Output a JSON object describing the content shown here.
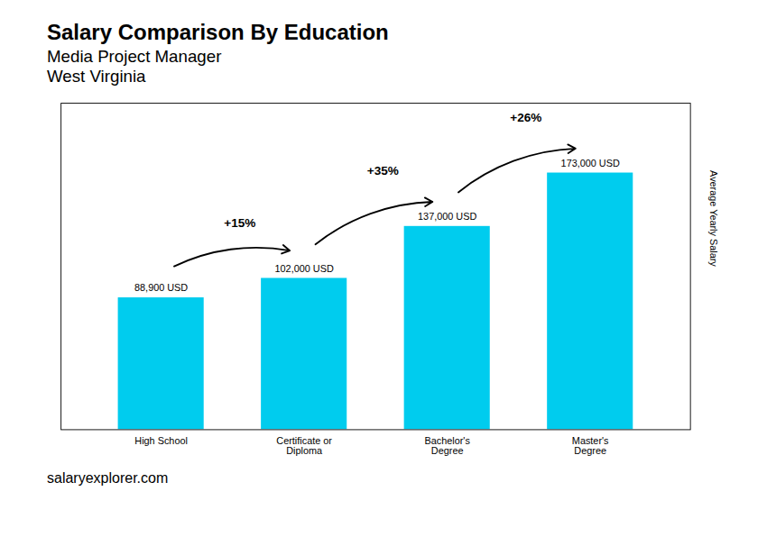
{
  "chart_data": {
    "type": "bar",
    "title": "Salary Comparison By Education",
    "subtitle": [
      "Media Project Manager",
      "West Virginia"
    ],
    "categories": [
      "High School",
      "Certificate or\nDiploma",
      "Bachelor's\nDegree",
      "Master's\nDegree"
    ],
    "values": [
      88900,
      102000,
      137000,
      173000
    ],
    "value_labels": [
      "88,900 USD",
      "102,000 USD",
      "137,000 USD",
      "173,000 USD"
    ],
    "data_labels": true,
    "color": "#00ccee",
    "ylabel": "Average Yearly Salary",
    "ylim": [
      0,
      220000
    ],
    "tick_labels": "x",
    "annotations": [
      {
        "text": "+15%",
        "from": "High School",
        "to": "Certificate or\nDiploma"
      },
      {
        "text": "+35%",
        "from": "Certificate or\nDiploma",
        "to": "Bachelor's\nDegree"
      },
      {
        "text": "+26%",
        "from": "Bachelor's\nDegree",
        "to": "Master's\nDegree"
      },
      {
        "text": "salaryexplorer.com"
      }
    ]
  }
}
